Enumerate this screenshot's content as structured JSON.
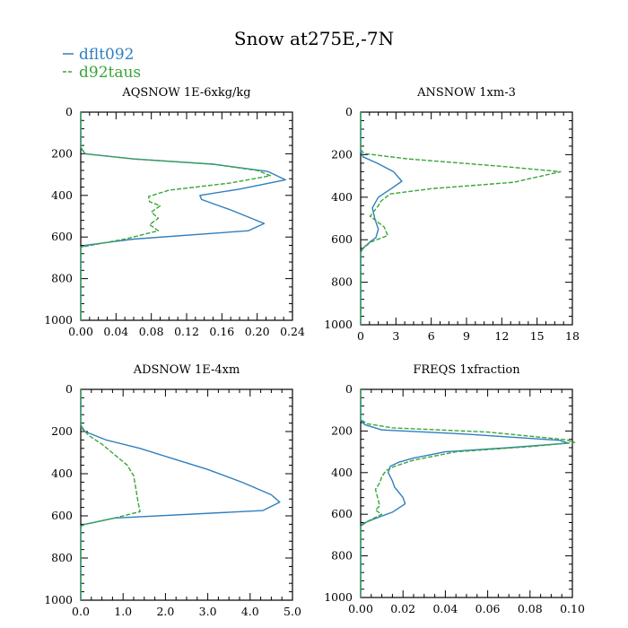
{
  "title": "Snow at275E,-7N",
  "legend": [
    {
      "label": "dflt092",
      "color": "#2f7fbf",
      "dash": "solid"
    },
    {
      "label": "d92taus",
      "color": "#3aa53a",
      "dash": "dashed"
    }
  ],
  "chart_data": [
    {
      "type": "line",
      "title": "AQSNOW  1E-6xkg/kg",
      "xlim": [
        0,
        0.24
      ],
      "xticks": [
        "0.00",
        "0.04",
        "0.08",
        "0.12",
        "0.16",
        "0.20",
        "0.24"
      ],
      "ylim": [
        0,
        1000
      ],
      "yticks": [
        "0",
        "200",
        "400",
        "600",
        "800",
        "1000"
      ],
      "ylabel": "",
      "series": [
        {
          "name": "dflt092",
          "points": [
            [
              0.0,
              0
            ],
            [
              0.0,
              170
            ],
            [
              0.005,
              200
            ],
            [
              0.06,
              225
            ],
            [
              0.15,
              250
            ],
            [
              0.212,
              285
            ],
            [
              0.232,
              325
            ],
            [
              0.18,
              370
            ],
            [
              0.135,
              400
            ],
            [
              0.137,
              420
            ],
            [
              0.17,
              470
            ],
            [
              0.208,
              535
            ],
            [
              0.19,
              570
            ],
            [
              0.06,
              610
            ],
            [
              0.005,
              640
            ],
            [
              0.0,
              650
            ],
            [
              0.0,
              1000
            ]
          ]
        },
        {
          "name": "d92taus",
          "points": [
            [
              0.0,
              0
            ],
            [
              0.0,
              170
            ],
            [
              0.005,
              200
            ],
            [
              0.06,
              225
            ],
            [
              0.15,
              250
            ],
            [
              0.2,
              280
            ],
            [
              0.215,
              305
            ],
            [
              0.17,
              340
            ],
            [
              0.1,
              375
            ],
            [
              0.077,
              405
            ],
            [
              0.078,
              430
            ],
            [
              0.09,
              450
            ],
            [
              0.08,
              480
            ],
            [
              0.088,
              510
            ],
            [
              0.078,
              540
            ],
            [
              0.088,
              570
            ],
            [
              0.05,
              610
            ],
            [
              0.005,
              645
            ],
            [
              0.0,
              650
            ],
            [
              0.0,
              1000
            ]
          ]
        }
      ]
    },
    {
      "type": "line",
      "title": "ANSNOW  1xm-3",
      "xlim": [
        0,
        18
      ],
      "xticks": [
        "0",
        "3",
        "6",
        "9",
        "12",
        "15",
        "18"
      ],
      "ylim": [
        0,
        1000
      ],
      "yticks": [
        "0",
        "200",
        "400",
        "600",
        "800",
        "1000"
      ],
      "ylabel": "",
      "series": [
        {
          "name": "dflt092",
          "points": [
            [
              0,
              0
            ],
            [
              0,
              185
            ],
            [
              0.2,
              210
            ],
            [
              1.4,
              240
            ],
            [
              2.8,
              280
            ],
            [
              3.5,
              325
            ],
            [
              2.6,
              360
            ],
            [
              1.5,
              400
            ],
            [
              1.0,
              450
            ],
            [
              1.2,
              500
            ],
            [
              1.5,
              550
            ],
            [
              1.3,
              590
            ],
            [
              0.8,
              610
            ],
            [
              0.2,
              640
            ],
            [
              0,
              660
            ],
            [
              0,
              1000
            ]
          ]
        },
        {
          "name": "d92taus",
          "points": [
            [
              0,
              0
            ],
            [
              0,
              175
            ],
            [
              0.3,
              195
            ],
            [
              4,
              220
            ],
            [
              12,
              255
            ],
            [
              17,
              280
            ],
            [
              13,
              330
            ],
            [
              6,
              360
            ],
            [
              2.5,
              385
            ],
            [
              1.7,
              420
            ],
            [
              1.5,
              440
            ],
            [
              0.8,
              490
            ],
            [
              1.3,
              510
            ],
            [
              2.0,
              540
            ],
            [
              2.3,
              580
            ],
            [
              0.9,
              610
            ],
            [
              0.2,
              640
            ],
            [
              0,
              660
            ],
            [
              0,
              1000
            ]
          ]
        }
      ]
    },
    {
      "type": "line",
      "title": "ADSNOW  1E-4xm",
      "xlim": [
        0,
        5.0
      ],
      "xticks": [
        "0.0",
        "1.0",
        "2.0",
        "3.0",
        "4.0",
        "5.0"
      ],
      "ylim": [
        0,
        1000
      ],
      "yticks": [
        "0",
        "200",
        "400",
        "600",
        "800",
        "1000"
      ],
      "ylabel": "",
      "series": [
        {
          "name": "dflt092",
          "points": [
            [
              0,
              0
            ],
            [
              0,
              170
            ],
            [
              0.1,
              200
            ],
            [
              0.6,
              240
            ],
            [
              1.4,
              280
            ],
            [
              2.2,
              330
            ],
            [
              3.0,
              380
            ],
            [
              3.8,
              440
            ],
            [
              4.5,
              500
            ],
            [
              4.7,
              535
            ],
            [
              4.3,
              575
            ],
            [
              0.8,
              610
            ],
            [
              0.1,
              640
            ],
            [
              0,
              650
            ],
            [
              0,
              1000
            ]
          ]
        },
        {
          "name": "d92taus",
          "points": [
            [
              0,
              0
            ],
            [
              0,
              180
            ],
            [
              0.2,
              220
            ],
            [
              0.5,
              260
            ],
            [
              0.8,
              310
            ],
            [
              1.1,
              360
            ],
            [
              1.25,
              410
            ],
            [
              1.3,
              470
            ],
            [
              1.35,
              530
            ],
            [
              1.4,
              580
            ],
            [
              0.8,
              610
            ],
            [
              0.1,
              640
            ],
            [
              0,
              650
            ],
            [
              0,
              1000
            ]
          ]
        }
      ]
    },
    {
      "type": "line",
      "title": "FREQS  1xfraction",
      "xlim": [
        0,
        0.1
      ],
      "xticks": [
        "0.00",
        "0.02",
        "0.04",
        "0.06",
        "0.08",
        "0.10"
      ],
      "ylim": [
        0,
        1000
      ],
      "yticks": [
        "0",
        "200",
        "400",
        "600",
        "800",
        "1000"
      ],
      "ylabel": "",
      "series": [
        {
          "name": "dflt092",
          "points": [
            [
              0,
              0
            ],
            [
              0,
              150
            ],
            [
              0.002,
              170
            ],
            [
              0.01,
              195
            ],
            [
              0.05,
              215
            ],
            [
              0.094,
              245
            ],
            [
              0.098,
              258
            ],
            [
              0.07,
              280
            ],
            [
              0.04,
              300
            ],
            [
              0.025,
              330
            ],
            [
              0.018,
              350
            ],
            [
              0.014,
              370
            ],
            [
              0.013,
              400
            ],
            [
              0.015,
              440
            ],
            [
              0.016,
              470
            ],
            [
              0.02,
              520
            ],
            [
              0.021,
              550
            ],
            [
              0.015,
              590
            ],
            [
              0.007,
              620
            ],
            [
              0.001,
              645
            ],
            [
              0,
              660
            ],
            [
              0,
              1000
            ]
          ]
        },
        {
          "name": "d92taus",
          "points": [
            [
              0,
              0
            ],
            [
              0,
              145
            ],
            [
              0.003,
              165
            ],
            [
              0.015,
              185
            ],
            [
              0.06,
              205
            ],
            [
              0.097,
              242
            ],
            [
              0.101,
              255
            ],
            [
              0.08,
              275
            ],
            [
              0.045,
              300
            ],
            [
              0.025,
              340
            ],
            [
              0.016,
              370
            ],
            [
              0.012,
              390
            ],
            [
              0.01,
              420
            ],
            [
              0.009,
              450
            ],
            [
              0.007,
              480
            ],
            [
              0.008,
              520
            ],
            [
              0.009,
              560
            ],
            [
              0.007,
              580
            ],
            [
              0.01,
              600
            ],
            [
              0.004,
              630
            ],
            [
              0.001,
              650
            ],
            [
              0,
              660
            ],
            [
              0,
              1000
            ]
          ]
        }
      ]
    }
  ]
}
